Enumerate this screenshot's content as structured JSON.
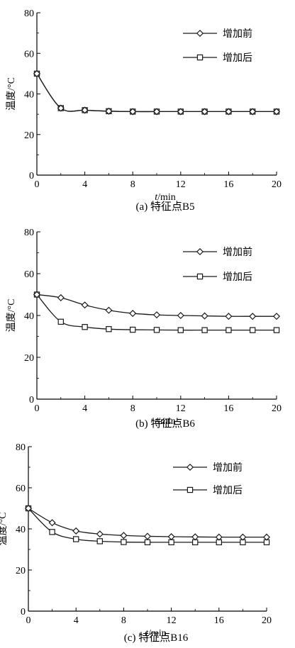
{
  "chart_data": [
    {
      "type": "line",
      "caption": "(a) 特征点B5",
      "xlabel_italic": "t",
      "xlabel_unit": "/min",
      "ylabel": "温度/°C",
      "xlim": [
        0,
        20
      ],
      "ylim": [
        0,
        80
      ],
      "x_ticks": [
        "0",
        "4",
        "8",
        "12",
        "16",
        "20"
      ],
      "y_ticks": [
        "0",
        "20",
        "40",
        "60",
        "80"
      ],
      "legend_position": "top-right",
      "series": [
        {
          "name": "增加前",
          "marker": "diamond",
          "x": [
            0,
            2,
            4,
            6,
            8,
            10,
            12,
            14,
            16,
            18,
            20
          ],
          "y": [
            50,
            33,
            32,
            31.5,
            31.3,
            31.3,
            31.3,
            31.3,
            31.3,
            31.3,
            31.3
          ]
        },
        {
          "name": "增加后",
          "marker": "square",
          "x": [
            0,
            2,
            4,
            6,
            8,
            10,
            12,
            14,
            16,
            18,
            20
          ],
          "y": [
            50,
            33,
            32,
            31.5,
            31.3,
            31.3,
            31.3,
            31.3,
            31.3,
            31.3,
            31.3
          ]
        }
      ]
    },
    {
      "type": "line",
      "caption": "(b) 特征点B6",
      "xlabel_italic": "t",
      "xlabel_unit": "/min",
      "ylabel": "温度/°C",
      "xlim": [
        0,
        20
      ],
      "ylim": [
        0,
        80
      ],
      "x_ticks": [
        "0",
        "4",
        "8",
        "12",
        "16",
        "20"
      ],
      "y_ticks": [
        "0",
        "20",
        "40",
        "60",
        "80"
      ],
      "legend_position": "top-right",
      "series": [
        {
          "name": "增加前",
          "marker": "diamond",
          "x": [
            0,
            2,
            4,
            6,
            8,
            10,
            12,
            14,
            16,
            18,
            20
          ],
          "y": [
            50,
            48.5,
            45,
            42.5,
            41,
            40.3,
            40,
            39.8,
            39.6,
            39.6,
            39.6
          ]
        },
        {
          "name": "增加后",
          "marker": "square",
          "x": [
            0,
            2,
            4,
            6,
            8,
            10,
            12,
            14,
            16,
            18,
            20
          ],
          "y": [
            50,
            37,
            34.5,
            33.5,
            33.2,
            33.1,
            33,
            33,
            33,
            33,
            33
          ]
        }
      ]
    },
    {
      "type": "line",
      "caption": "(c) 特征点B16",
      "xlabel_italic": "t",
      "xlabel_unit": "/min",
      "ylabel": "温度/°C",
      "xlim": [
        0,
        20
      ],
      "ylim": [
        0,
        80
      ],
      "x_ticks": [
        "0",
        "4",
        "8",
        "12",
        "16",
        "20"
      ],
      "y_ticks": [
        "0",
        "20",
        "40",
        "60",
        "80"
      ],
      "legend_position": "top-right",
      "series": [
        {
          "name": "增加前",
          "marker": "diamond",
          "x": [
            0,
            2,
            4,
            6,
            8,
            10,
            12,
            14,
            16,
            18,
            20
          ],
          "y": [
            50,
            43,
            39,
            37.5,
            36.8,
            36.4,
            36.2,
            36.1,
            36,
            36,
            36
          ]
        },
        {
          "name": "增加后",
          "marker": "square",
          "x": [
            0,
            2,
            4,
            6,
            8,
            10,
            12,
            14,
            16,
            18,
            20
          ],
          "y": [
            50,
            38.5,
            35,
            34,
            33.6,
            33.5,
            33.5,
            33.5,
            33.5,
            33.5,
            33.5
          ]
        }
      ]
    }
  ]
}
